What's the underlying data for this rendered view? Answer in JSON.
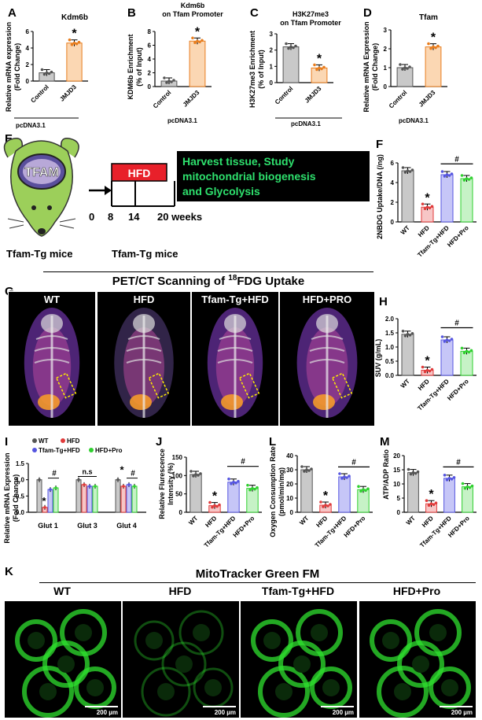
{
  "colors": {
    "gray_bar": "#c9c9c9",
    "orange_bar": "#fbd7b3",
    "orange_edge": "#e87d1e",
    "red": "#e03a3a",
    "blue": "#5555e0",
    "green": "#2fd02f",
    "green_banner": "#2ee06d",
    "hfd_red": "#e8202a",
    "mouse_green": "#9ccf5a",
    "dark_bg": "#111"
  },
  "panels": {
    "A": {
      "letter": "A",
      "title": "Kdm6b",
      "ylabel1": "Relative mRNA expression",
      "ylabel2": "(Fold Change)",
      "cats": [
        "Control",
        "JMJD3"
      ],
      "group": "pcDNA3.1",
      "ticks": [
        "0",
        "2",
        "4",
        "6"
      ],
      "sig": "*"
    },
    "B": {
      "letter": "B",
      "title1": "Kdm6b",
      "title2": "on Tfam Promoter",
      "ylabel1": "KDM6b Enrichment",
      "ylabel2": "(% of Input)",
      "cats": [
        "Control",
        "JMJD3"
      ],
      "group": "pcDNA3.1",
      "ticks": [
        "0",
        "2",
        "4",
        "6",
        "8"
      ],
      "sig": "*"
    },
    "C": {
      "letter": "C",
      "title1": "H3K27me3",
      "title2": "on Tfam Promoter",
      "ylabel1": "H3K27me3 Enrichment",
      "ylabel2": "(% of Input)",
      "cats": [
        "Control",
        "JMJD3"
      ],
      "group": "pcDNA3.1",
      "ticks": [
        "0",
        "1",
        "2",
        "3"
      ],
      "sig": "*"
    },
    "D": {
      "letter": "D",
      "title": "Tfam",
      "ylabel1": "Relative mRNA Expression",
      "ylabel2": "(Fold Change)",
      "cats": [
        "Control",
        "JMJD3"
      ],
      "group": "pcDNA3.1",
      "ticks": [
        "0",
        "1",
        "2",
        "3"
      ],
      "sig": "*"
    },
    "E": {
      "letter": "E",
      "tfam": "TFAM",
      "hfd": "HFD",
      "timeline": [
        "0",
        "8",
        "14",
        "20 weeks"
      ],
      "banner1": "Harvest tissue, Study",
      "banner2": "mitochondrial biogenesis",
      "banner3": "and Glycolysis",
      "mice1": "Tfam-Tg mice",
      "mice2": "Tfam-Tg mice"
    },
    "F": {
      "letter": "F",
      "ylabel": "2NBDG Uptake/DNA (/ng)",
      "cats": [
        "WT",
        "HFD",
        "Tfam-Tg+HFD",
        "HFD+Pro"
      ],
      "ticks": [
        "0",
        "2",
        "4",
        "6"
      ],
      "sig": "*",
      "hash": "#"
    },
    "G": {
      "letter": "G",
      "heading": "PET/CT Scanning of ",
      "sup": "18",
      "heading2": "FDG Uptake",
      "labels": [
        "WT",
        "HFD",
        "Tfam-Tg+HFD",
        "HFD+PRO"
      ]
    },
    "H": {
      "letter": "H",
      "ylabel": "SUV (g/mL)",
      "cats": [
        "WT",
        "HFD",
        "Tfam-Tg+HFD",
        "HFD+Pro"
      ],
      "ticks": [
        "0.0",
        "0.5",
        "1.0",
        "1.5",
        "2.0"
      ],
      "sig": "*",
      "hash": "#"
    },
    "I": {
      "letter": "I",
      "ylabel1": "Relative mRNA Expression",
      "ylabel2": "(Fold Change)",
      "legend": [
        "WT",
        "HFD",
        "Tfam-Tg+HFD",
        "HFD+Pro"
      ],
      "cats": [
        "Glut 1",
        "Glut 3",
        "Glut 4"
      ],
      "ticks": [
        "0.0",
        "0.5",
        "1.0",
        "1.5"
      ],
      "sig": "*",
      "ns": "n.s",
      "hash": "#"
    },
    "J": {
      "letter": "J",
      "ylabel1": "Relative Flurescence",
      "ylabel2": "Intensity (%)",
      "cats": [
        "WT",
        "HFD",
        "Tfam-Tg+HFD",
        "HFD+Pro"
      ],
      "ticks": [
        "0",
        "50",
        "100",
        "150"
      ],
      "sig": "*",
      "hash": "#"
    },
    "L": {
      "letter": "L",
      "ylabel1": "Oxygen Consumption Rate",
      "ylabel2": "(pmol/min/mg)",
      "cats": [
        "WT",
        "HFD",
        "Tfam-Tg+HFD",
        "HFD+Pro"
      ],
      "ticks": [
        "0",
        "10",
        "20",
        "30",
        "40"
      ],
      "sig": "*",
      "hash": "#"
    },
    "M": {
      "letter": "M",
      "ylabel": "ATP/ADP Ratio",
      "cats": [
        "WT",
        "HFD",
        "Tfam-Tg+HFD",
        "HFD+Pro"
      ],
      "ticks": [
        "0",
        "5",
        "10",
        "15",
        "20"
      ],
      "sig": "*",
      "hash": "#"
    },
    "K": {
      "letter": "K",
      "heading": "MitoTracker Green FM",
      "labels": [
        "WT",
        "HFD",
        "Tfam-Tg+HFD",
        "HFD+Pro"
      ],
      "scale": "200 µm"
    }
  },
  "chart_data": [
    {
      "type": "bar",
      "panel": "A",
      "categories": [
        "Control",
        "JMJD3"
      ],
      "values": [
        1.0,
        4.6
      ],
      "ylim": [
        0,
        6
      ]
    },
    {
      "type": "bar",
      "panel": "B",
      "categories": [
        "Control",
        "JMJD3"
      ],
      "values": [
        0.8,
        6.6
      ],
      "ylim": [
        0,
        8
      ]
    },
    {
      "type": "bar",
      "panel": "C",
      "categories": [
        "Control",
        "JMJD3"
      ],
      "values": [
        2.2,
        0.9
      ],
      "ylim": [
        0,
        3
      ]
    },
    {
      "type": "bar",
      "panel": "D",
      "categories": [
        "Control",
        "JMJD3"
      ],
      "values": [
        1.0,
        2.1
      ],
      "ylim": [
        0,
        3
      ]
    },
    {
      "type": "bar",
      "panel": "F",
      "categories": [
        "WT",
        "HFD",
        "Tfam-Tg+HFD",
        "HFD+Pro"
      ],
      "values": [
        5.2,
        1.5,
        4.8,
        4.4
      ],
      "ylim": [
        0,
        6
      ]
    },
    {
      "type": "bar",
      "panel": "H",
      "categories": [
        "WT",
        "HFD",
        "Tfam-Tg+HFD",
        "HFD+Pro"
      ],
      "values": [
        1.45,
        0.18,
        1.25,
        0.85
      ],
      "ylim": [
        0,
        2
      ]
    },
    {
      "type": "bar",
      "panel": "I",
      "categories": [
        "Glut 1",
        "Glut 3",
        "Glut 4"
      ],
      "series": [
        {
          "name": "WT",
          "values": [
            1.0,
            1.0,
            1.0
          ]
        },
        {
          "name": "HFD",
          "values": [
            0.15,
            0.85,
            0.8
          ]
        },
        {
          "name": "Tfam-Tg+HFD",
          "values": [
            0.7,
            0.8,
            0.85
          ]
        },
        {
          "name": "HFD+Pro",
          "values": [
            0.75,
            0.8,
            0.8
          ]
        }
      ],
      "ylim": [
        0,
        1.5
      ]
    },
    {
      "type": "bar",
      "panel": "J",
      "categories": [
        "WT",
        "HFD",
        "Tfam-Tg+HFD",
        "HFD+Pro"
      ],
      "values": [
        103,
        18,
        82,
        65
      ],
      "ylim": [
        0,
        150
      ]
    },
    {
      "type": "bar",
      "panel": "L",
      "categories": [
        "WT",
        "HFD",
        "Tfam-Tg+HFD",
        "HFD+Pro"
      ],
      "values": [
        30,
        5,
        25,
        16
      ],
      "ylim": [
        0,
        40
      ]
    },
    {
      "type": "bar",
      "panel": "M",
      "categories": [
        "WT",
        "HFD",
        "Tfam-Tg+HFD",
        "HFD+Pro"
      ],
      "values": [
        14,
        3,
        12,
        9
      ],
      "ylim": [
        0,
        20
      ]
    }
  ]
}
